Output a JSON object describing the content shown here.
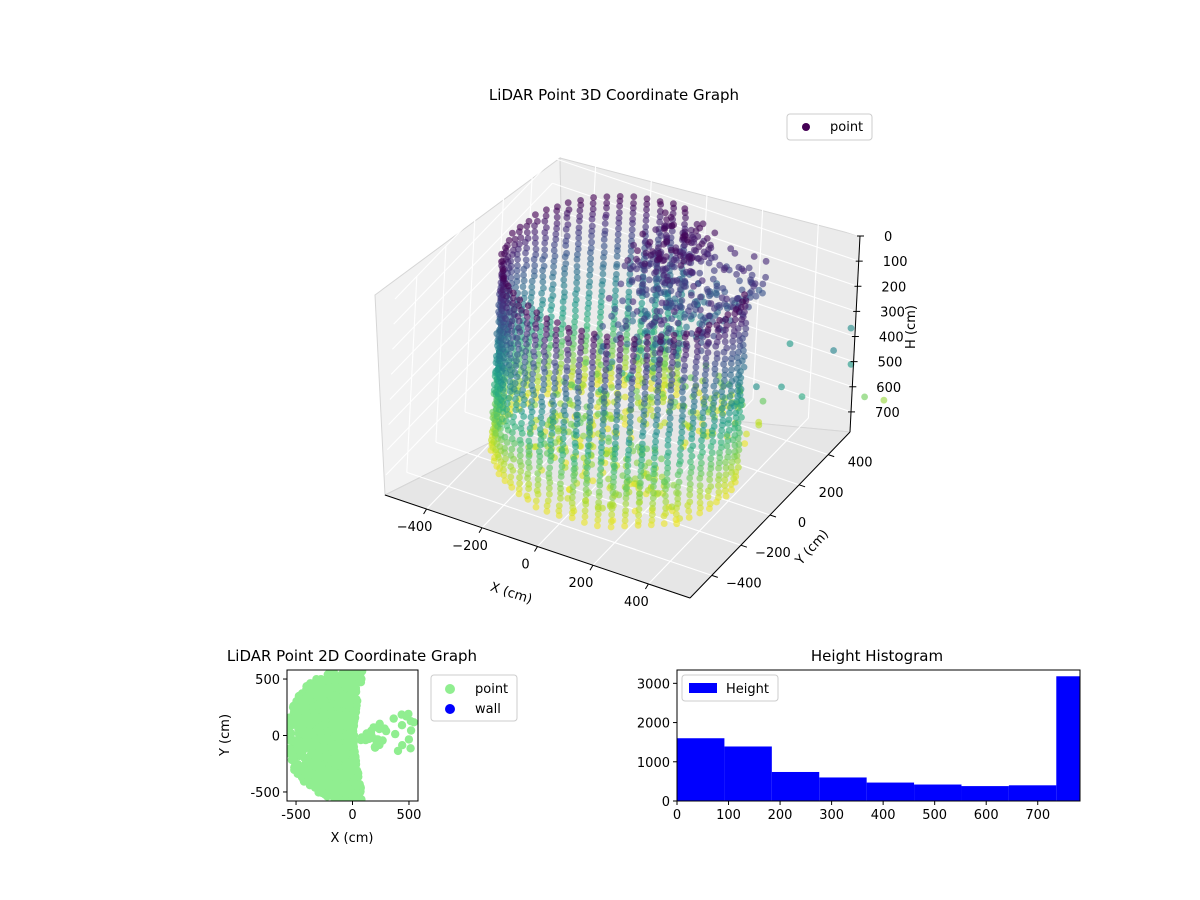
{
  "chart_data": [
    {
      "type": "scatter3d",
      "title": "LiDAR Point 3D Coordinate Graph",
      "xlabel": "X (cm)",
      "ylabel": "Y (cm)",
      "zlabel": "H (cm)",
      "xticks": [
        "−400",
        "−200",
        "0",
        "200",
        "400"
      ],
      "yticks": [
        "−400",
        "−200",
        "0",
        "200",
        "400"
      ],
      "zticks": [
        "0",
        "100",
        "200",
        "300",
        "400",
        "500",
        "600",
        "700"
      ],
      "xlim": [
        -550,
        550
      ],
      "ylim": [
        -550,
        550
      ],
      "zlim": [
        780,
        0
      ],
      "legend": {
        "position": "top-right",
        "entries": [
          {
            "label": "point",
            "color": "#440154"
          }
        ]
      },
      "colormap": "viridis",
      "grid": true
    },
    {
      "type": "scatter",
      "title": "LiDAR Point 2D Coordinate Graph",
      "xlabel": "X (cm)",
      "ylabel": "Y (cm)",
      "xlim": [
        -580,
        580
      ],
      "ylim": [
        -580,
        580
      ],
      "xticks": [
        -500,
        0,
        500
      ],
      "yticks": [
        -500,
        0,
        500
      ],
      "legend": {
        "position": "outside-right",
        "entries": [
          {
            "label": "point",
            "color": "#90ee90"
          },
          {
            "label": "wall",
            "color": "#0000ff"
          }
        ]
      }
    },
    {
      "type": "bar",
      "title": "Height Histogram",
      "xlabel": "",
      "ylabel": "",
      "bin_edges": [
        0,
        92,
        184,
        276,
        368,
        460,
        552,
        644,
        736,
        782
      ],
      "values": [
        1600,
        1390,
        740,
        600,
        470,
        420,
        380,
        400,
        3180
      ],
      "xlim": [
        0,
        782
      ],
      "ylim": [
        0,
        3340
      ],
      "xticks": [
        0,
        100,
        200,
        300,
        400,
        500,
        600,
        700
      ],
      "yticks": [
        0,
        1000,
        2000,
        3000
      ],
      "color": "#0000ff",
      "legend": {
        "position": "top-left",
        "entries": [
          {
            "label": "Height",
            "color": "#0000ff"
          }
        ]
      }
    }
  ]
}
